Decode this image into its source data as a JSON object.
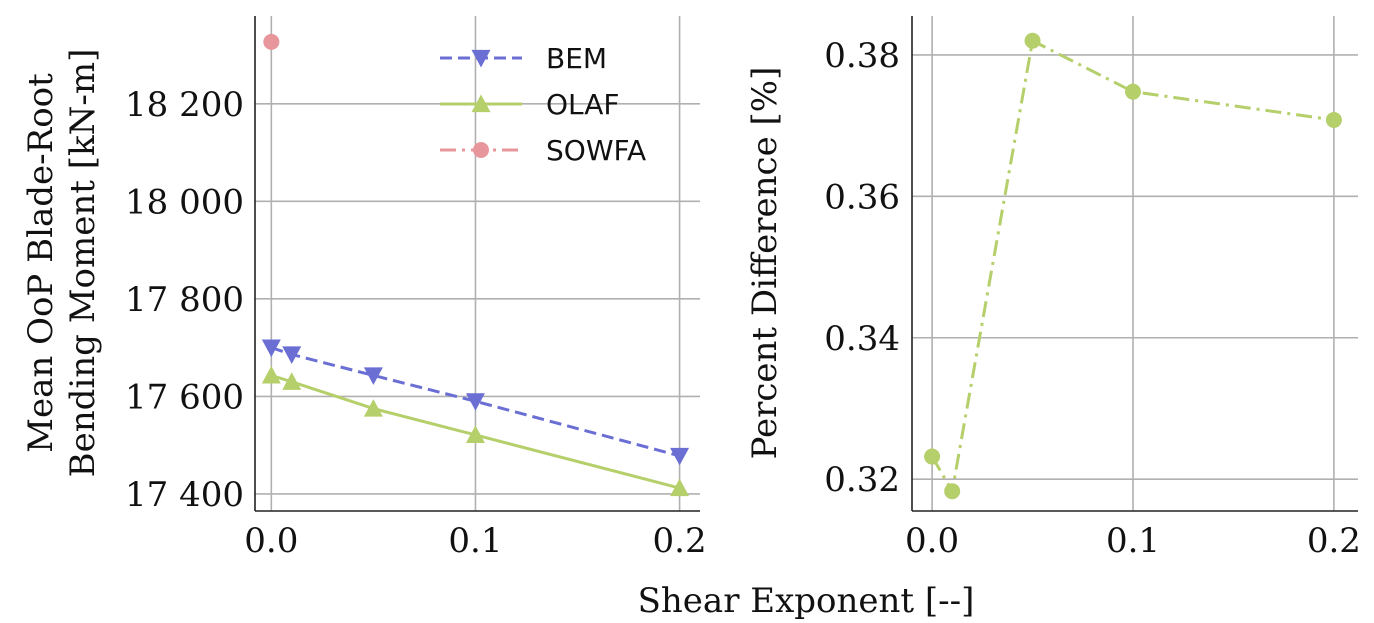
{
  "figure": {
    "shared_xlabel": "Shear Exponent [--]"
  },
  "chart_data": [
    {
      "type": "line",
      "ylabel": [
        "Mean OoP Blade-Root",
        "Bending Moment [kN-m]"
      ],
      "xlim": [
        -0.008,
        0.21
      ],
      "ylim": [
        17365,
        18380
      ],
      "xticks": [
        0.0,
        0.1,
        0.2
      ],
      "xtick_labels": [
        "0.0",
        "0.1",
        "0.2"
      ],
      "yticks": [
        17400,
        17600,
        17800,
        18000,
        18200
      ],
      "ytick_labels": [
        "17 400",
        "17 600",
        "17 800",
        "18 000",
        "18 200"
      ],
      "grid": true,
      "legend_position": "top-right",
      "series": [
        {
          "name": "BEM",
          "color": "#6b6fd4",
          "line_style": "dashed",
          "marker": "triangle-down",
          "x": [
            0.0,
            0.01,
            0.05,
            0.1,
            0.2
          ],
          "y": [
            17700,
            17686,
            17643,
            17590,
            17478
          ]
        },
        {
          "name": "OLAF",
          "color": "#b5cf6b",
          "line_style": "solid",
          "marker": "triangle-up",
          "x": [
            0.0,
            0.01,
            0.05,
            0.1,
            0.2
          ],
          "y": [
            17643,
            17630,
            17575,
            17521,
            17412
          ]
        },
        {
          "name": "SOWFA",
          "color": "#e7969c",
          "line_style": "dash-dot",
          "marker": "circle",
          "x": [
            0.0
          ],
          "y": [
            18327
          ]
        }
      ]
    },
    {
      "type": "line",
      "ylabel": [
        "Percent Difference [%]"
      ],
      "xlim": [
        -0.01,
        0.212
      ],
      "ylim": [
        0.3155,
        0.3855
      ],
      "xticks": [
        0.0,
        0.1,
        0.2
      ],
      "xtick_labels": [
        "0.0",
        "0.1",
        "0.2"
      ],
      "yticks": [
        0.32,
        0.34,
        0.36,
        0.38
      ],
      "ytick_labels": [
        "0.32",
        "0.34",
        "0.36",
        "0.38"
      ],
      "grid": true,
      "series": [
        {
          "color": "#b5cf6b",
          "line_style": "dash-dot",
          "marker": "circle",
          "x": [
            0.0,
            0.01,
            0.05,
            0.1,
            0.2
          ],
          "y": [
            0.3232,
            0.3183,
            0.382,
            0.3748,
            0.3708
          ]
        }
      ]
    }
  ]
}
